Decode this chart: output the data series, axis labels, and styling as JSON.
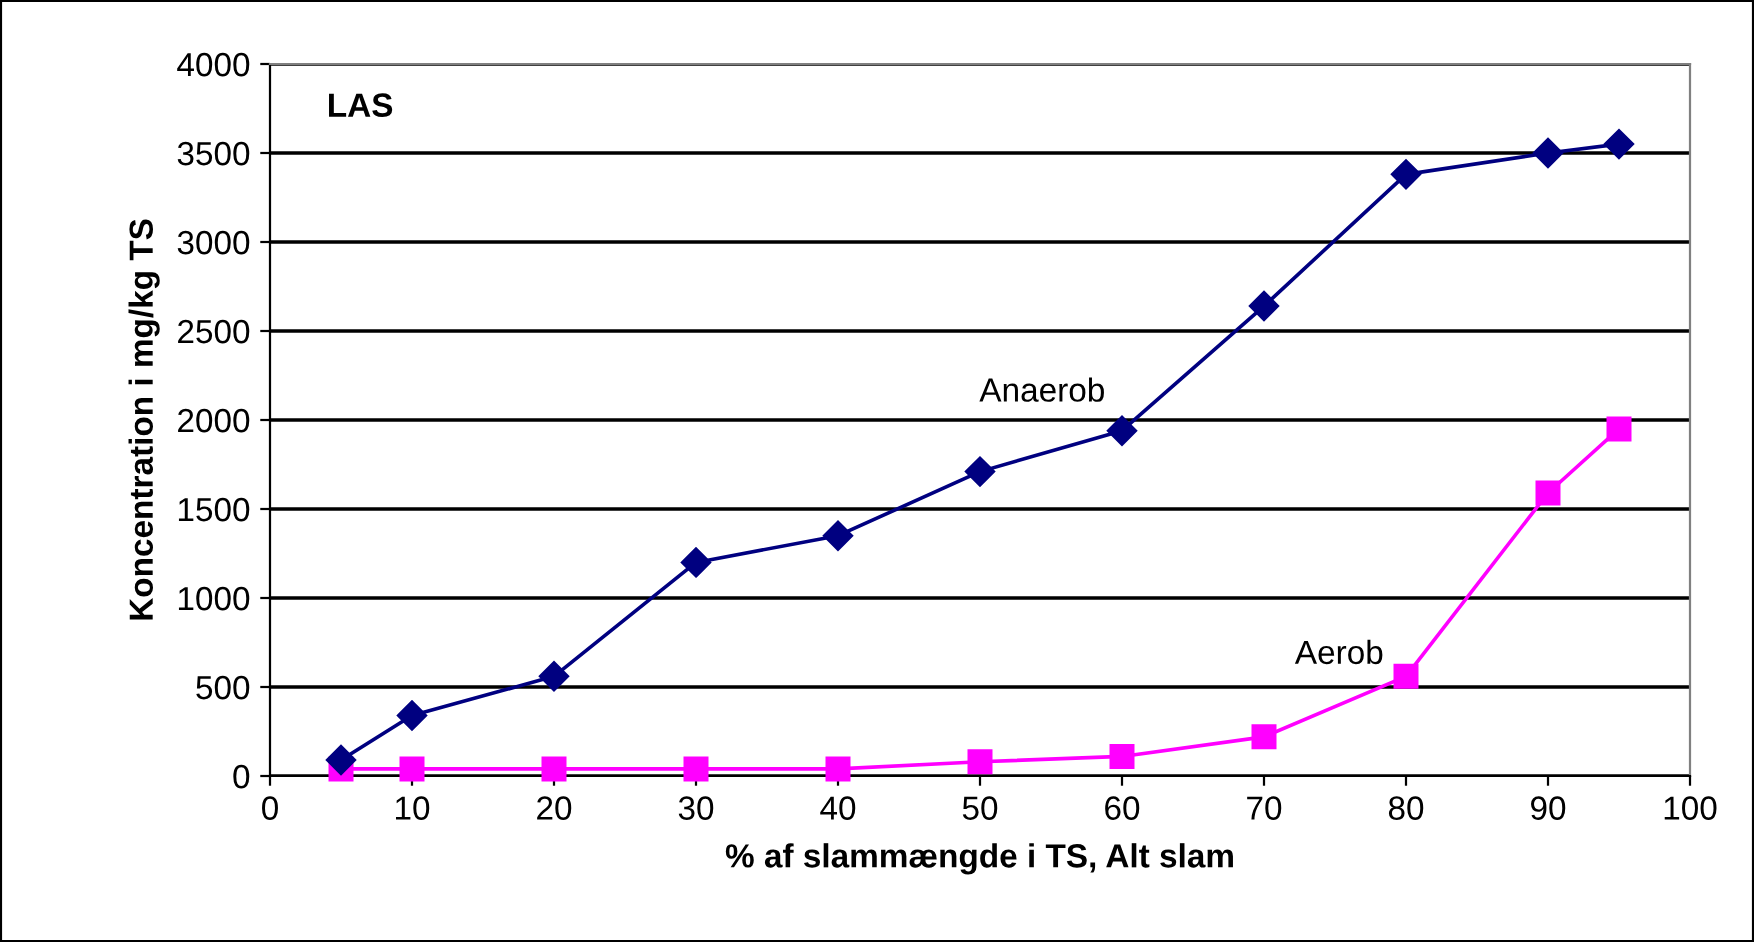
{
  "chart_data": {
    "type": "line",
    "title": "LAS",
    "xlabel": "% af slammængde i TS, Alt slam",
    "ylabel": "Koncentration i mg/kg TS",
    "x": [
      5,
      10,
      20,
      30,
      40,
      50,
      60,
      70,
      80,
      90,
      95
    ],
    "series": [
      {
        "name": "Anaerob",
        "color": "#000080",
        "marker": "diamond",
        "values": [
          90,
          340,
          560,
          1200,
          1350,
          1710,
          1940,
          2640,
          3380,
          3500,
          3550
        ]
      },
      {
        "name": "Aerob",
        "color": "#ff00ff",
        "marker": "square",
        "values": [
          40,
          40,
          40,
          40,
          40,
          80,
          110,
          220,
          560,
          1590,
          1950
        ]
      }
    ],
    "xlim": [
      0,
      100
    ],
    "xticks": [
      0,
      10,
      20,
      30,
      40,
      50,
      60,
      70,
      80,
      90,
      100
    ],
    "ylim": [
      0,
      4000
    ],
    "yticks": [
      0,
      500,
      1000,
      1500,
      2000,
      2500,
      3000,
      3500,
      4000
    ],
    "grid": "y",
    "legend": false
  }
}
